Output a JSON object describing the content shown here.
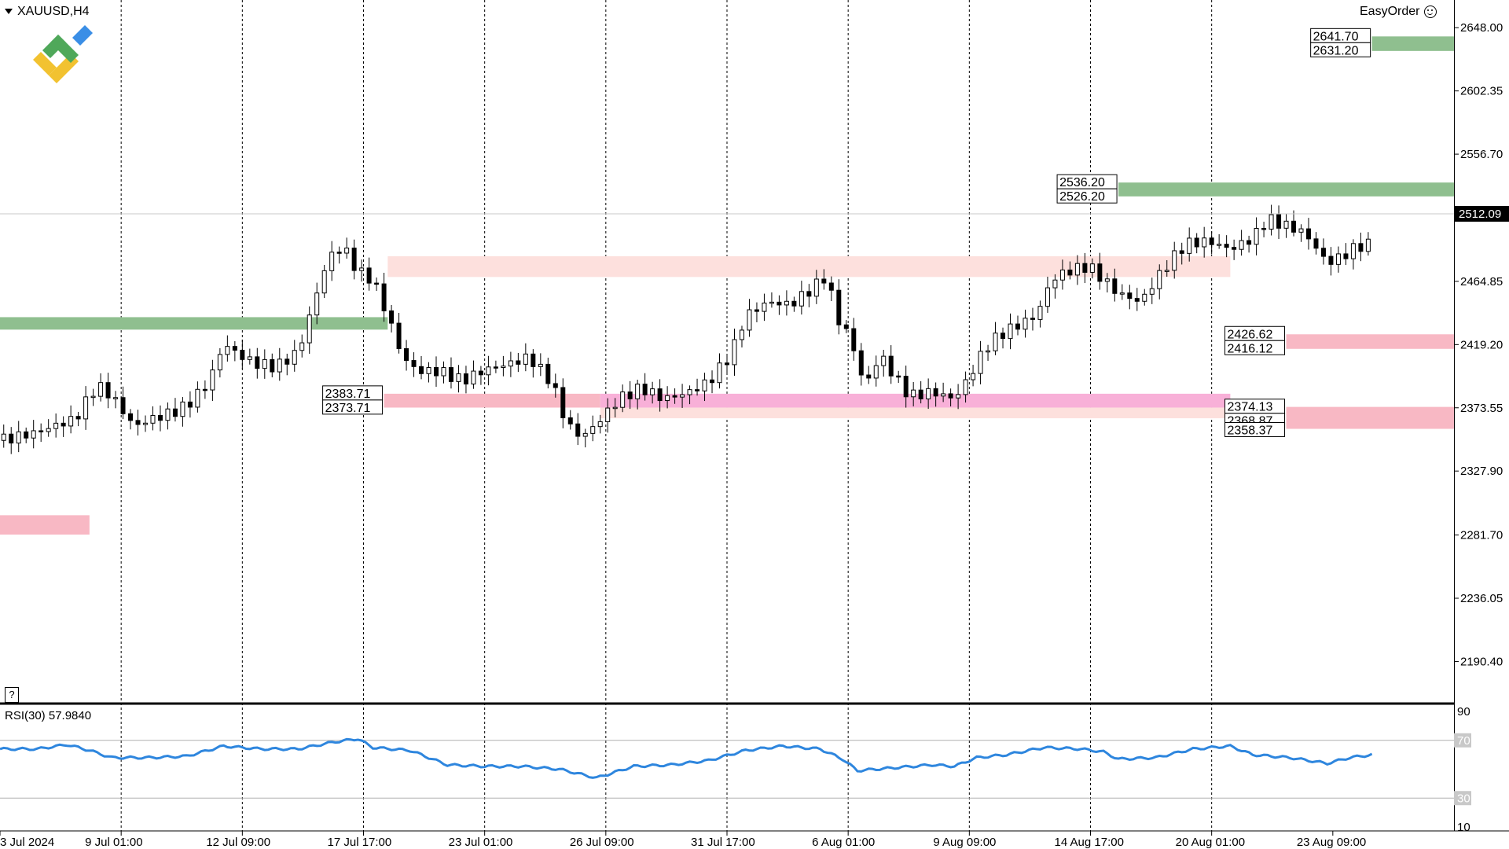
{
  "header": {
    "symbol": "XAUUSD,H4",
    "easyorder": "EasyOrder"
  },
  "help_button": "?",
  "rsi": {
    "label": "RSI(30) 57.9840",
    "levels": [
      90,
      70,
      30,
      10
    ]
  },
  "colors": {
    "demand": "#8fbf8f",
    "supply": "#f8b8c4",
    "supply_faint": "#fde0dd",
    "magenta": "#f8b0d8",
    "rsi_line": "#2e86de",
    "bull": "#ffffff",
    "bear": "#000000"
  },
  "chart_data": {
    "type": "candlestick",
    "symbol": "XAUUSD",
    "timeframe": "H4",
    "ylim": [
      2160,
      2668
    ],
    "y_ticks": [
      "2648.00",
      "2602.35",
      "2556.70",
      "2511.05",
      "2464.85",
      "2419.20",
      "2373.55",
      "2327.90",
      "2281.70",
      "2236.05",
      "2190.40"
    ],
    "current_price": "2512.09",
    "x_labels": [
      "3 Jul 2024",
      "9 Jul 01:00",
      "12 Jul 09:00",
      "17 Jul 17:00",
      "23 Jul 01:00",
      "26 Jul 09:00",
      "31 Jul 17:00",
      "6 Aug 01:00",
      "9 Aug 09:00",
      "14 Aug 17:00",
      "20 Aug 01:00",
      "23 Aug 09:00"
    ],
    "close_path": [
      [
        0,
        2350
      ],
      [
        10,
        2356
      ],
      [
        16,
        2362
      ],
      [
        20,
        2365
      ],
      [
        26,
        2390
      ],
      [
        30,
        2382
      ],
      [
        36,
        2360
      ],
      [
        40,
        2365
      ],
      [
        46,
        2370
      ],
      [
        50,
        2375
      ],
      [
        56,
        2392
      ],
      [
        60,
        2420
      ],
      [
        64,
        2412
      ],
      [
        68,
        2406
      ],
      [
        74,
        2403
      ],
      [
        80,
        2414
      ],
      [
        84,
        2448
      ],
      [
        88,
        2482
      ],
      [
        92,
        2490
      ],
      [
        96,
        2472
      ],
      [
        100,
        2466
      ],
      [
        104,
        2440
      ],
      [
        108,
        2410
      ],
      [
        112,
        2400
      ],
      [
        118,
        2400
      ],
      [
        124,
        2393
      ],
      [
        130,
        2401
      ],
      [
        136,
        2405
      ],
      [
        142,
        2410
      ],
      [
        148,
        2392
      ],
      [
        152,
        2362
      ],
      [
        156,
        2352
      ],
      [
        160,
        2362
      ],
      [
        166,
        2380
      ],
      [
        172,
        2388
      ],
      [
        178,
        2380
      ],
      [
        184,
        2384
      ],
      [
        190,
        2392
      ],
      [
        196,
        2412
      ],
      [
        200,
        2440
      ],
      [
        206,
        2450
      ],
      [
        212,
        2448
      ],
      [
        218,
        2460
      ],
      [
        222,
        2470
      ],
      [
        224,
        2440
      ],
      [
        228,
        2425
      ],
      [
        232,
        2388
      ],
      [
        236,
        2412
      ],
      [
        240,
        2396
      ],
      [
        244,
        2382
      ],
      [
        250,
        2385
      ],
      [
        256,
        2380
      ],
      [
        260,
        2396
      ],
      [
        264,
        2416
      ],
      [
        268,
        2426
      ],
      [
        272,
        2432
      ],
      [
        278,
        2440
      ],
      [
        282,
        2466
      ],
      [
        286,
        2472
      ],
      [
        292,
        2476
      ],
      [
        296,
        2466
      ],
      [
        300,
        2456
      ],
      [
        306,
        2450
      ],
      [
        310,
        2466
      ],
      [
        314,
        2480
      ],
      [
        318,
        2492
      ],
      [
        324,
        2494
      ],
      [
        330,
        2488
      ],
      [
        336,
        2496
      ],
      [
        340,
        2510
      ],
      [
        346,
        2504
      ],
      [
        350,
        2500
      ],
      [
        356,
        2478
      ],
      [
        360,
        2483
      ],
      [
        364,
        2490
      ],
      [
        368,
        2492
      ]
    ],
    "zones": [
      {
        "type": "demand",
        "label_top": "2641.70",
        "label_bottom": "2631.20",
        "top": 2641.7,
        "bottom": 2631.2,
        "x0": 368,
        "x1": 390
      },
      {
        "type": "demand",
        "label_top": "2536.20",
        "label_bottom": "2526.20",
        "top": 2536.2,
        "bottom": 2526.2,
        "x0": 300,
        "x1": 390
      },
      {
        "type": "demand",
        "label_top": "",
        "label_bottom": "",
        "top": 2439,
        "bottom": 2430,
        "x0": 0,
        "x1": 104
      },
      {
        "type": "supply_faint",
        "label_top": "",
        "label_bottom": "",
        "top": 2483,
        "bottom": 2468,
        "x0": 104,
        "x1": 330
      },
      {
        "type": "supply",
        "label_top": "2426.62",
        "label_bottom": "2416.12",
        "top": 2426.62,
        "bottom": 2416.12,
        "x0": 345,
        "x1": 390
      },
      {
        "type": "supply",
        "label_top": "2383.71",
        "label_bottom": "2373.71",
        "top": 2383.71,
        "bottom": 2373.71,
        "x0": 103,
        "x1": 161
      },
      {
        "type": "magenta",
        "label_top": "",
        "label_bottom": "",
        "top": 2383.71,
        "bottom": 2373.71,
        "x0": 161,
        "x1": 330
      },
      {
        "type": "supply_faint",
        "label_top": "",
        "label_bottom": "",
        "top": 2373.71,
        "bottom": 2366,
        "x0": 161,
        "x1": 330
      },
      {
        "type": "supply",
        "label_top": "2374.13",
        "label_bottom": "2368.87",
        "top": 2374.13,
        "bottom": 2358.37,
        "x0": 345,
        "x1": 390
      },
      {
        "type": "supply",
        "label_top": "",
        "label_bottom": "2358.37",
        "top": 2374.13,
        "bottom": 2358.37,
        "x0": 345,
        "x1": 390
      },
      {
        "type": "supply",
        "label_top": "",
        "label_bottom": "",
        "top": 2296,
        "bottom": 2282,
        "x0": 0,
        "x1": 24
      }
    ],
    "rsi_path": [
      [
        0,
        64
      ],
      [
        10,
        64
      ],
      [
        18,
        67
      ],
      [
        24,
        63
      ],
      [
        30,
        58
      ],
      [
        40,
        58
      ],
      [
        50,
        59
      ],
      [
        60,
        66
      ],
      [
        70,
        64
      ],
      [
        80,
        64
      ],
      [
        90,
        69
      ],
      [
        96,
        71
      ],
      [
        100,
        65
      ],
      [
        110,
        63
      ],
      [
        120,
        53
      ],
      [
        130,
        52
      ],
      [
        140,
        52
      ],
      [
        150,
        50
      ],
      [
        160,
        44
      ],
      [
        170,
        52
      ],
      [
        180,
        53
      ],
      [
        190,
        56
      ],
      [
        200,
        63
      ],
      [
        210,
        66
      ],
      [
        220,
        64
      ],
      [
        226,
        57
      ],
      [
        230,
        49
      ],
      [
        240,
        51
      ],
      [
        250,
        53
      ],
      [
        256,
        52
      ],
      [
        262,
        58
      ],
      [
        270,
        60
      ],
      [
        280,
        65
      ],
      [
        290,
        64
      ],
      [
        296,
        62
      ],
      [
        300,
        57
      ],
      [
        310,
        58
      ],
      [
        320,
        64
      ],
      [
        330,
        66
      ],
      [
        336,
        60
      ],
      [
        346,
        58
      ],
      [
        356,
        54
      ],
      [
        362,
        58
      ],
      [
        368,
        60
      ]
    ]
  }
}
